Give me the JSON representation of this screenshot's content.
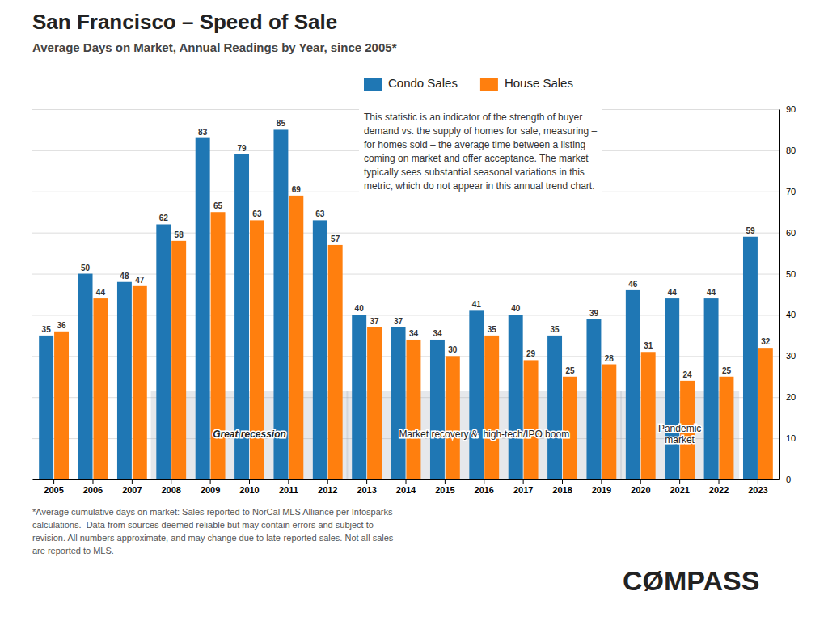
{
  "chart_data": {
    "type": "bar",
    "title": "San Francisco – Speed of Sale",
    "subtitle": "Average Days on Market, Annual Readings by Year, since 2005*",
    "categories": [
      "2005",
      "2006",
      "2007",
      "2008",
      "2009",
      "2010",
      "2011",
      "2012",
      "2013",
      "2014",
      "2015",
      "2016",
      "2017",
      "2018",
      "2019",
      "2020",
      "2021",
      "2022",
      "2023"
    ],
    "series": [
      {
        "name": "Condo Sales",
        "values": [
          35,
          50,
          48,
          62,
          83,
          79,
          85,
          63,
          40,
          37,
          34,
          41,
          40,
          35,
          39,
          46,
          44,
          44,
          59
        ]
      },
      {
        "name": "House Sales",
        "values": [
          36,
          44,
          47,
          58,
          65,
          63,
          69,
          57,
          37,
          34,
          30,
          35,
          29,
          25,
          28,
          31,
          24,
          25,
          32
        ]
      }
    ],
    "ylim": [
      0,
      90
    ],
    "yticks": [
      0,
      10,
      20,
      30,
      40,
      50,
      60,
      70,
      80,
      90
    ],
    "grid": true,
    "legend": "top",
    "data_labels": true,
    "annotations": [
      {
        "text": "Great recession",
        "from": "2008",
        "to": "2012"
      },
      {
        "text": "Market recovery &  high-tech/IPO boom",
        "from": "2013",
        "to": "2019"
      },
      {
        "text": "Pandemic\nmarket",
        "from": "2020",
        "to": "2022"
      }
    ],
    "note": "This statistic is an indicator of the strength of buyer\ndemand vs. the supply of homes for sale, measuring –\nfor homes sold – the average time between a listing\ncoming on market and offer acceptance. The market\ntypically sees substantial seasonal variations in this\nmetric, which do not appear in this annual trend chart.",
    "footnote": "*Average cumulative days on market: Sales reported to NorCal MLS Alliance per Infosparks\ncalculations.  Data from sources deemed reliable but may contain errors and subject to\nrevision. All numbers approximate, and may change due to late-reported sales. Not all sales\nare reported to MLS.",
    "logo": "CØMPASS"
  }
}
